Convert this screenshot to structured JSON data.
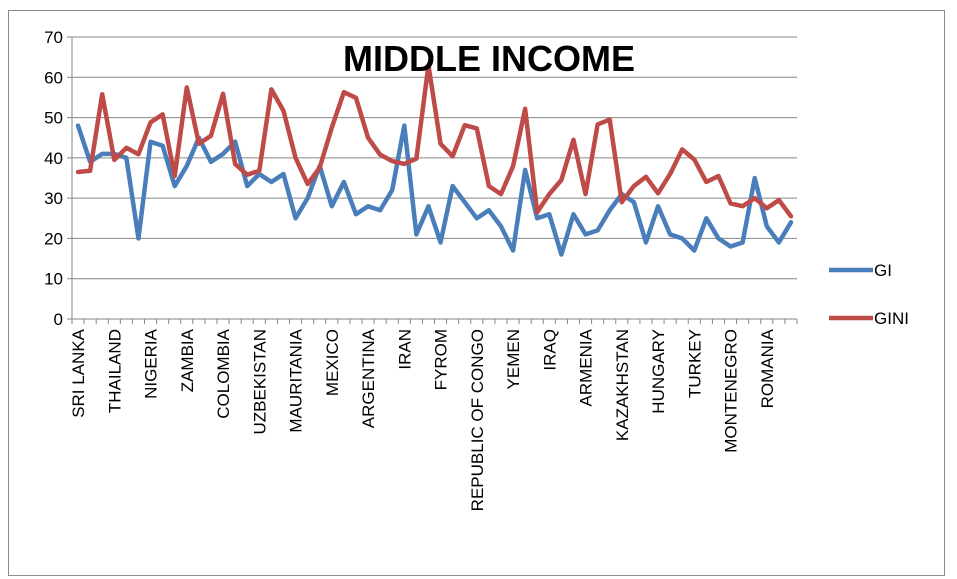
{
  "chart_data": {
    "type": "line",
    "title": "MIDDLE INCOME",
    "xlabel": "",
    "ylabel": "",
    "ylim": [
      0,
      70
    ],
    "yticks": [
      0,
      10,
      20,
      30,
      40,
      50,
      60,
      70
    ],
    "grid": true,
    "legend": "right",
    "x_label_every": 3,
    "categories": [
      "SRI LANKA",
      "",
      "",
      "THAILAND",
      "",
      "",
      "NIGERIA",
      "",
      "",
      "ZAMBIA",
      "",
      "",
      "COLOMBIA",
      "",
      "",
      "UZBEKISTAN",
      "",
      "",
      "MAURITANIA",
      "",
      "",
      "MEXICO",
      "",
      "",
      "ARGENTINA",
      "",
      "",
      "IRAN",
      "",
      "",
      "FYROM",
      "",
      "",
      "REPUBLIC OF CONGO",
      "",
      "",
      "YEMEN",
      "",
      "",
      "IRAQ",
      "",
      "",
      "ARMENIA",
      "",
      "",
      "KAZAKHSTAN",
      "",
      "",
      "HUNGARY",
      "",
      "",
      "TURKEY",
      "",
      "",
      "MONTENEGRO",
      "",
      "",
      "ROMANIA",
      "",
      ""
    ],
    "series": [
      {
        "name": "GI",
        "color": "#4a7ebb",
        "values": [
          48,
          39,
          41,
          41,
          40,
          20,
          44,
          43,
          33,
          38,
          45,
          39,
          41,
          44,
          33,
          36,
          34,
          36,
          25,
          30,
          38,
          28,
          34,
          26,
          28,
          27,
          32,
          48,
          21,
          28,
          19,
          33,
          29,
          25,
          27,
          23,
          17,
          37,
          25,
          26,
          16,
          26,
          21,
          22,
          27,
          31,
          29,
          19,
          28,
          21,
          20,
          17,
          25,
          20,
          18,
          19,
          35,
          23,
          19,
          24
        ]
      },
      {
        "name": "GINI",
        "color": "#be4b48",
        "values": [
          36.5,
          36.8,
          55.8,
          39.5,
          42.5,
          40.9,
          48.8,
          50.8,
          35.5,
          57.5,
          43.5,
          45.5,
          55.9,
          38.5,
          35.8,
          36.8,
          57,
          51.7,
          40,
          33.5,
          37.6,
          47.5,
          56.3,
          54.9,
          45,
          40.8,
          39.2,
          38.5,
          39.8,
          63,
          43.5,
          40.4,
          48.1,
          47.3,
          33,
          31,
          37.9,
          52.2,
          26.5,
          31,
          34.5,
          44.5,
          31,
          48.3,
          49.5,
          29,
          33,
          35.3,
          31.2,
          36,
          42.1,
          39.6,
          34,
          35.5,
          28.7,
          28,
          30,
          27.5,
          29.5,
          25.5
        ]
      }
    ]
  }
}
